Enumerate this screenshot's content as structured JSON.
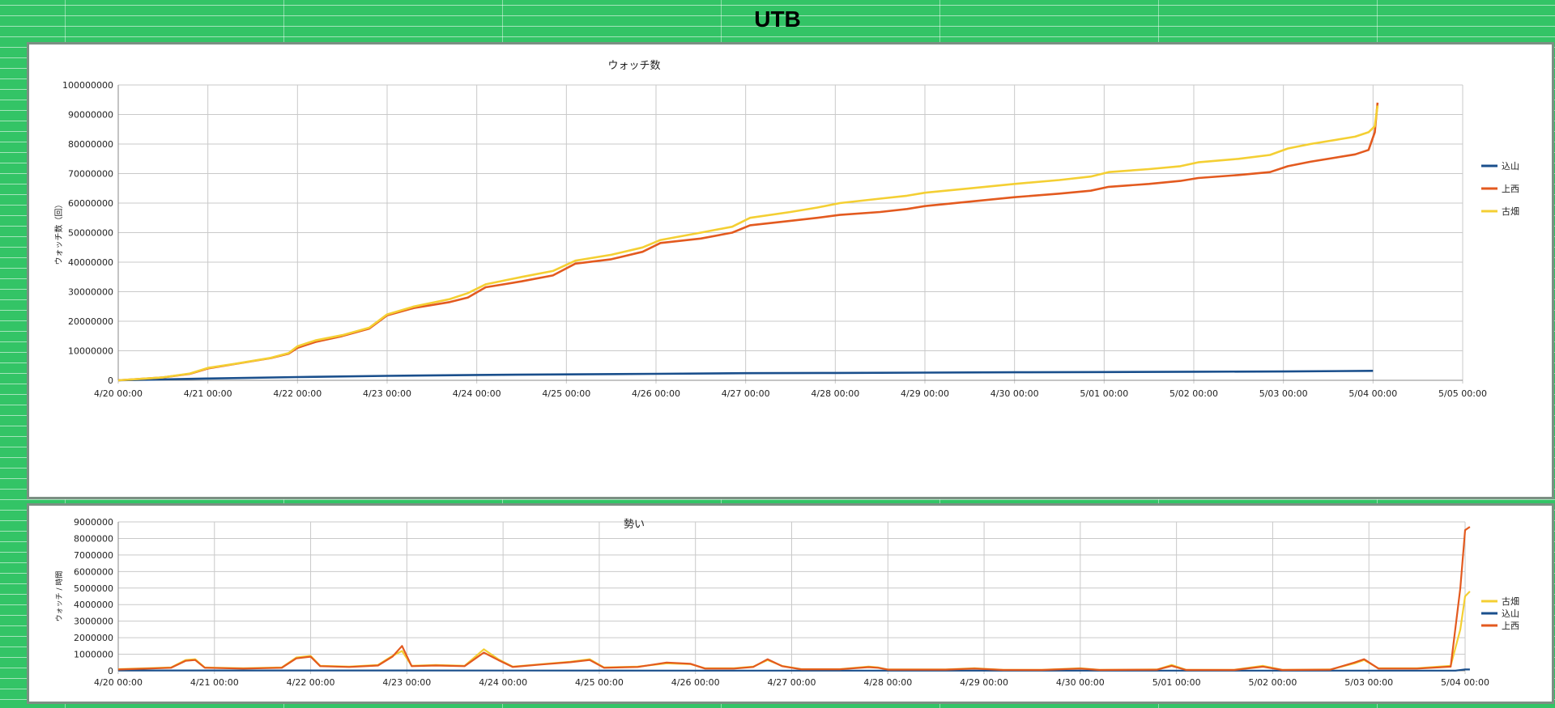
{
  "page": {
    "title": "UTB"
  },
  "colors": {
    "background": "#33c466",
    "komiyama": "#1a4f8c",
    "kamisai": "#e35a1f",
    "furuhata": "#f4cf33"
  },
  "chart_data": [
    {
      "type": "line",
      "title": "ウォッチ数",
      "xlabel": "",
      "ylabel": "ウォッチ数（回）",
      "x_ticks": [
        "4/20 00:00",
        "4/21 00:00",
        "4/22 00:00",
        "4/23 00:00",
        "4/24 00:00",
        "4/25 00:00",
        "4/26 00:00",
        "4/27 00:00",
        "4/28 00:00",
        "4/29 00:00",
        "4/30 00:00",
        "5/01 00:00",
        "5/02 00:00",
        "5/03 00:00",
        "5/04 00:00",
        "5/05 00:00"
      ],
      "xlim": [
        0,
        15
      ],
      "ylim": [
        0,
        100000000
      ],
      "y_ticks": [
        "0",
        "10000000",
        "20000000",
        "30000000",
        "40000000",
        "50000000",
        "60000000",
        "70000000",
        "80000000",
        "90000000",
        "100000000"
      ],
      "grid": true,
      "legend_position": "right",
      "legend_order": [
        "込山",
        "上西",
        "古畑"
      ],
      "series": [
        {
          "name": "込山",
          "color": "#1a4f8c",
          "points": [
            [
              0,
              0
            ],
            [
              1,
              600000
            ],
            [
              2,
              1100000
            ],
            [
              3,
              1500000
            ],
            [
              4,
              1800000
            ],
            [
              5,
              2000000
            ],
            [
              6,
              2200000
            ],
            [
              7,
              2400000
            ],
            [
              8,
              2500000
            ],
            [
              9,
              2600000
            ],
            [
              10,
              2700000
            ],
            [
              11,
              2800000
            ],
            [
              12,
              2900000
            ],
            [
              13,
              3000000
            ],
            [
              14,
              3200000
            ]
          ]
        },
        {
          "name": "上西",
          "color": "#e35a1f",
          "points": [
            [
              0,
              0
            ],
            [
              0.5,
              1000000
            ],
            [
              0.8,
              2200000
            ],
            [
              1,
              4000000
            ],
            [
              1.3,
              5500000
            ],
            [
              1.7,
              7500000
            ],
            [
              1.9,
              9000000
            ],
            [
              2,
              11000000
            ],
            [
              2.2,
              13000000
            ],
            [
              2.5,
              15000000
            ],
            [
              2.8,
              17500000
            ],
            [
              3,
              22000000
            ],
            [
              3.3,
              24500000
            ],
            [
              3.7,
              26500000
            ],
            [
              3.9,
              28000000
            ],
            [
              4.1,
              31500000
            ],
            [
              4.5,
              33500000
            ],
            [
              4.85,
              35500000
            ],
            [
              5.1,
              39500000
            ],
            [
              5.5,
              41000000
            ],
            [
              5.85,
              43500000
            ],
            [
              6.05,
              46500000
            ],
            [
              6.5,
              48000000
            ],
            [
              6.85,
              50000000
            ],
            [
              7.05,
              52500000
            ],
            [
              7.5,
              54000000
            ],
            [
              7.8,
              55000000
            ],
            [
              8.05,
              56000000
            ],
            [
              8.5,
              57000000
            ],
            [
              8.8,
              58000000
            ],
            [
              9,
              59000000
            ],
            [
              9.5,
              60500000
            ],
            [
              10,
              62000000
            ],
            [
              10.5,
              63200000
            ],
            [
              10.85,
              64200000
            ],
            [
              11.05,
              65500000
            ],
            [
              11.5,
              66500000
            ],
            [
              11.85,
              67500000
            ],
            [
              12.05,
              68500000
            ],
            [
              12.5,
              69500000
            ],
            [
              12.85,
              70500000
            ],
            [
              13.05,
              72500000
            ],
            [
              13.3,
              74000000
            ],
            [
              13.8,
              76500000
            ],
            [
              13.95,
              78000000
            ],
            [
              14.02,
              84000000
            ],
            [
              14.05,
              94000000
            ]
          ]
        },
        {
          "name": "古畑",
          "color": "#f4cf33",
          "points": [
            [
              0,
              0
            ],
            [
              0.5,
              1000000
            ],
            [
              0.8,
              2300000
            ],
            [
              1,
              4200000
            ],
            [
              1.3,
              5600000
            ],
            [
              1.7,
              7600000
            ],
            [
              1.9,
              9200000
            ],
            [
              2,
              11500000
            ],
            [
              2.2,
              13500000
            ],
            [
              2.5,
              15300000
            ],
            [
              2.8,
              17800000
            ],
            [
              3,
              22300000
            ],
            [
              3.3,
              25000000
            ],
            [
              3.7,
              27500000
            ],
            [
              3.9,
              29500000
            ],
            [
              4.1,
              32500000
            ],
            [
              4.5,
              35000000
            ],
            [
              4.85,
              37000000
            ],
            [
              5.1,
              40500000
            ],
            [
              5.5,
              42500000
            ],
            [
              5.85,
              45000000
            ],
            [
              6.05,
              47500000
            ],
            [
              6.5,
              50000000
            ],
            [
              6.85,
              52000000
            ],
            [
              7.05,
              55000000
            ],
            [
              7.5,
              57000000
            ],
            [
              7.8,
              58500000
            ],
            [
              8.05,
              60000000
            ],
            [
              8.5,
              61500000
            ],
            [
              8.8,
              62500000
            ],
            [
              9,
              63500000
            ],
            [
              9.5,
              65000000
            ],
            [
              10,
              66500000
            ],
            [
              10.5,
              67800000
            ],
            [
              10.85,
              69000000
            ],
            [
              11.05,
              70500000
            ],
            [
              11.5,
              71500000
            ],
            [
              11.85,
              72500000
            ],
            [
              12.05,
              73800000
            ],
            [
              12.5,
              75000000
            ],
            [
              12.85,
              76300000
            ],
            [
              13.05,
              78500000
            ],
            [
              13.3,
              80000000
            ],
            [
              13.8,
              82500000
            ],
            [
              13.95,
              84000000
            ],
            [
              14.02,
              86000000
            ],
            [
              14.05,
              93000000
            ]
          ]
        }
      ]
    },
    {
      "type": "line",
      "title": "勢い",
      "xlabel": "",
      "ylabel": "ウォッチ / 時間",
      "x_ticks": [
        "4/20 00:00",
        "4/21 00:00",
        "4/22 00:00",
        "4/23 00:00",
        "4/24 00:00",
        "4/25 00:00",
        "4/26 00:00",
        "4/27 00:00",
        "4/28 00:00",
        "4/29 00:00",
        "4/30 00:00",
        "5/01 00:00",
        "5/02 00:00",
        "5/03 00:00",
        "5/04 00:00"
      ],
      "xlim": [
        0,
        14
      ],
      "ylim": [
        0,
        9000000
      ],
      "y_ticks": [
        "0",
        "1000000",
        "2000000",
        "3000000",
        "4000000",
        "5000000",
        "6000000",
        "7000000",
        "8000000",
        "9000000"
      ],
      "grid": true,
      "legend_position": "right",
      "legend_order": [
        "古畑",
        "込山",
        "上西"
      ],
      "series": [
        {
          "name": "古畑",
          "color": "#f4cf33",
          "points": [
            [
              0,
              100000
            ],
            [
              0.3,
              150000
            ],
            [
              0.55,
              200000
            ],
            [
              0.7,
              650000
            ],
            [
              0.8,
              700000
            ],
            [
              0.9,
              200000
            ],
            [
              1.3,
              150000
            ],
            [
              1.7,
              200000
            ],
            [
              1.85,
              800000
            ],
            [
              2,
              900000
            ],
            [
              2.1,
              300000
            ],
            [
              2.4,
              250000
            ],
            [
              2.7,
              350000
            ],
            [
              2.85,
              900000
            ],
            [
              2.95,
              1200000
            ],
            [
              3.05,
              300000
            ],
            [
              3.3,
              350000
            ],
            [
              3.6,
              300000
            ],
            [
              3.8,
              1300000
            ],
            [
              3.95,
              700000
            ],
            [
              4.1,
              250000
            ],
            [
              4.4,
              400000
            ],
            [
              4.7,
              550000
            ],
            [
              4.9,
              700000
            ],
            [
              5.05,
              200000
            ],
            [
              5.4,
              250000
            ],
            [
              5.7,
              450000
            ],
            [
              5.95,
              400000
            ],
            [
              6.1,
              150000
            ],
            [
              6.4,
              150000
            ],
            [
              6.6,
              250000
            ],
            [
              6.75,
              650000
            ],
            [
              6.9,
              300000
            ],
            [
              7.1,
              100000
            ],
            [
              7.5,
              100000
            ],
            [
              7.8,
              250000
            ],
            [
              7.9,
              200000
            ],
            [
              8,
              80000
            ],
            [
              8.6,
              80000
            ],
            [
              8.9,
              150000
            ],
            [
              9.2,
              60000
            ],
            [
              9.6,
              60000
            ],
            [
              10,
              150000
            ],
            [
              10.2,
              60000
            ],
            [
              10.8,
              80000
            ],
            [
              10.95,
              350000
            ],
            [
              11.1,
              60000
            ],
            [
              11.6,
              60000
            ],
            [
              11.9,
              300000
            ],
            [
              12.1,
              60000
            ],
            [
              12.6,
              80000
            ],
            [
              12.85,
              450000
            ],
            [
              12.95,
              650000
            ],
            [
              13.1,
              150000
            ],
            [
              13.5,
              150000
            ],
            [
              13.85,
              300000
            ],
            [
              13.95,
              2500000
            ],
            [
              14,
              4500000
            ],
            [
              14.05,
              4800000
            ]
          ]
        },
        {
          "name": "込山",
          "color": "#1a4f8c",
          "points": [
            [
              0,
              20000
            ],
            [
              2,
              20000
            ],
            [
              4,
              15000
            ],
            [
              6,
              12000
            ],
            [
              8,
              10000
            ],
            [
              10,
              10000
            ],
            [
              12,
              10000
            ],
            [
              13.9,
              10000
            ],
            [
              14,
              80000
            ],
            [
              14.05,
              80000
            ]
          ]
        },
        {
          "name": "上西",
          "color": "#e35a1f",
          "points": [
            [
              0,
              80000
            ],
            [
              0.3,
              130000
            ],
            [
              0.55,
              180000
            ],
            [
              0.7,
              600000
            ],
            [
              0.8,
              650000
            ],
            [
              0.9,
              180000
            ],
            [
              1.3,
              130000
            ],
            [
              1.7,
              180000
            ],
            [
              1.85,
              750000
            ],
            [
              2,
              850000
            ],
            [
              2.1,
              280000
            ],
            [
              2.4,
              230000
            ],
            [
              2.7,
              320000
            ],
            [
              2.85,
              850000
            ],
            [
              2.95,
              1500000
            ],
            [
              3.05,
              280000
            ],
            [
              3.3,
              320000
            ],
            [
              3.6,
              280000
            ],
            [
              3.8,
              1100000
            ],
            [
              3.95,
              650000
            ],
            [
              4.1,
              230000
            ],
            [
              4.4,
              380000
            ],
            [
              4.7,
              520000
            ],
            [
              4.9,
              650000
            ],
            [
              5.05,
              180000
            ],
            [
              5.4,
              230000
            ],
            [
              5.7,
              500000
            ],
            [
              5.95,
              420000
            ],
            [
              6.1,
              130000
            ],
            [
              6.4,
              130000
            ],
            [
              6.6,
              230000
            ],
            [
              6.75,
              700000
            ],
            [
              6.9,
              280000
            ],
            [
              7.1,
              90000
            ],
            [
              7.5,
              90000
            ],
            [
              7.8,
              220000
            ],
            [
              7.9,
              180000
            ],
            [
              8,
              70000
            ],
            [
              8.6,
              70000
            ],
            [
              8.9,
              130000
            ],
            [
              9.2,
              50000
            ],
            [
              9.6,
              50000
            ],
            [
              10,
              130000
            ],
            [
              10.2,
              50000
            ],
            [
              10.8,
              70000
            ],
            [
              10.95,
              300000
            ],
            [
              11.1,
              50000
            ],
            [
              11.6,
              50000
            ],
            [
              11.9,
              250000
            ],
            [
              12.1,
              50000
            ],
            [
              12.6,
              70000
            ],
            [
              12.85,
              500000
            ],
            [
              12.95,
              700000
            ],
            [
              13.1,
              130000
            ],
            [
              13.5,
              130000
            ],
            [
              13.85,
              250000
            ],
            [
              13.95,
              5000000
            ],
            [
              14,
              8500000
            ],
            [
              14.05,
              8700000
            ]
          ]
        }
      ]
    }
  ]
}
